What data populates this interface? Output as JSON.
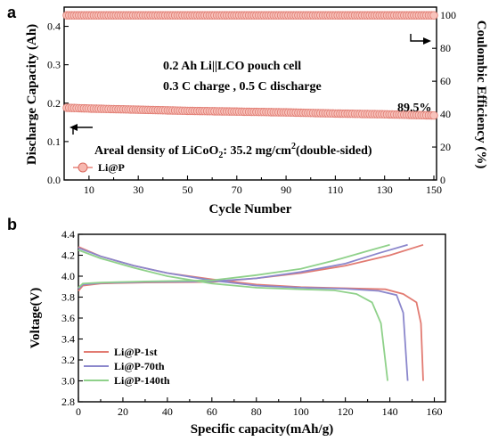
{
  "chart_data": [
    {
      "panel": "a",
      "type": "scatter",
      "xlabel": "Cycle Number",
      "ylabel_left": "Discharge Capacity (Ah)",
      "ylabel_right": "Coulombic Efficiency (%)",
      "xlim": [
        1,
        150
      ],
      "ylim_left": [
        0,
        0.45
      ],
      "ylim_right": [
        0,
        105
      ],
      "xticks": [
        "10",
        "30",
        "50",
        "70",
        "90",
        "110",
        "130",
        "150"
      ],
      "yticks_left": [
        "0.0",
        "0.1",
        "0.2",
        "0.3",
        "0.4"
      ],
      "yticks_right": [
        "0",
        "20",
        "40",
        "60",
        "80",
        "100"
      ],
      "annotations": [
        "0.2 Ah Li||LCO pouch cell",
        "0.3 C charge , 0.5 C discharge",
        "89.5%"
      ],
      "areal_density": {
        "prefix": "Areal density of LiCoO",
        "sub": "2",
        "mid": ": 35.2 mg/cm",
        "sup": "2",
        "suffix": "(double-sided)"
      },
      "legend": [
        "Li@P"
      ],
      "legend_position": "lower-left",
      "series": [
        {
          "name": "Li@P",
          "axis": "left",
          "points": [
            [
              1,
              0.188
            ],
            [
              10,
              0.186
            ],
            [
              30,
              0.183
            ],
            [
              50,
              0.18
            ],
            [
              70,
              0.178
            ],
            [
              90,
              0.176
            ],
            [
              110,
              0.173
            ],
            [
              130,
              0.171
            ],
            [
              150,
              0.168
            ]
          ]
        },
        {
          "name": "Li@P",
          "axis": "right",
          "points": [
            [
              1,
              100
            ],
            [
              150,
              100
            ]
          ]
        }
      ],
      "color": "#e8847a"
    },
    {
      "panel": "b",
      "type": "line",
      "xlabel": "Specific capacity(mAh/g)",
      "ylabel": "Voltage(V)",
      "xlim": [
        0,
        165
      ],
      "ylim": [
        2.8,
        4.4
      ],
      "xticks": [
        "0",
        "20",
        "40",
        "60",
        "80",
        "100",
        "120",
        "140",
        "160"
      ],
      "yticks": [
        "2.8",
        "3.0",
        "3.2",
        "3.4",
        "3.6",
        "3.8",
        "4.0",
        "4.2",
        "4.4"
      ],
      "legend_position": "lower-left",
      "series": [
        {
          "name": "Li@P-1st",
          "color": "#e27b72",
          "discharge": [
            [
              0,
              4.28
            ],
            [
              10,
              4.19
            ],
            [
              25,
              4.1
            ],
            [
              40,
              4.03
            ],
            [
              60,
              3.97
            ],
            [
              80,
              3.92
            ],
            [
              100,
              3.895
            ],
            [
              120,
              3.885
            ],
            [
              138,
              3.875
            ],
            [
              146,
              3.83
            ],
            [
              152,
              3.75
            ],
            [
              154,
              3.55
            ],
            [
              155,
              3.0
            ]
          ],
          "charge": [
            [
              0,
              3.86
            ],
            [
              2,
              3.91
            ],
            [
              10,
              3.93
            ],
            [
              30,
              3.94
            ],
            [
              60,
              3.945
            ],
            [
              80,
              3.98
            ],
            [
              100,
              4.03
            ],
            [
              120,
              4.1
            ],
            [
              140,
              4.2
            ],
            [
              155,
              4.3
            ]
          ]
        },
        {
          "name": "Li@P-70th",
          "color": "#8b87cc",
          "discharge": [
            [
              0,
              4.27
            ],
            [
              10,
              4.19
            ],
            [
              25,
              4.1
            ],
            [
              40,
              4.03
            ],
            [
              60,
              3.96
            ],
            [
              80,
              3.91
            ],
            [
              100,
              3.89
            ],
            [
              120,
              3.88
            ],
            [
              135,
              3.86
            ],
            [
              143,
              3.82
            ],
            [
              146,
              3.65
            ],
            [
              148,
              3.0
            ]
          ],
          "charge": [
            [
              0,
              3.88
            ],
            [
              2,
              3.92
            ],
            [
              10,
              3.935
            ],
            [
              30,
              3.945
            ],
            [
              60,
              3.95
            ],
            [
              80,
              3.98
            ],
            [
              100,
              4.04
            ],
            [
              120,
              4.12
            ],
            [
              135,
              4.22
            ],
            [
              148,
              4.3
            ]
          ]
        },
        {
          "name": "Li@P-140th",
          "color": "#8fd18a",
          "discharge": [
            [
              0,
              4.25
            ],
            [
              10,
              4.17
            ],
            [
              25,
              4.08
            ],
            [
              40,
              4.0
            ],
            [
              60,
              3.93
            ],
            [
              80,
              3.89
            ],
            [
              100,
              3.875
            ],
            [
              115,
              3.865
            ],
            [
              125,
              3.83
            ],
            [
              132,
              3.75
            ],
            [
              136,
              3.55
            ],
            [
              139,
              3.0
            ]
          ],
          "charge": [
            [
              0,
              3.89
            ],
            [
              2,
              3.93
            ],
            [
              10,
              3.94
            ],
            [
              30,
              3.95
            ],
            [
              60,
              3.96
            ],
            [
              80,
              4.01
            ],
            [
              100,
              4.07
            ],
            [
              115,
              4.15
            ],
            [
              130,
              4.24
            ],
            [
              140,
              4.3
            ]
          ]
        }
      ]
    }
  ]
}
